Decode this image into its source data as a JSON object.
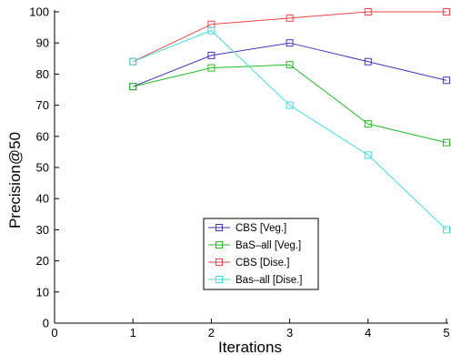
{
  "chart_data": {
    "type": "line",
    "title": "",
    "xlabel": "Iterations",
    "ylabel": "Precision@50",
    "xlim": [
      0,
      5
    ],
    "ylim": [
      0,
      100
    ],
    "xticks": [
      0,
      1,
      2,
      3,
      4,
      5
    ],
    "yticks": [
      0,
      10,
      20,
      30,
      40,
      50,
      60,
      70,
      80,
      90,
      100
    ],
    "grid": false,
    "legend_position": "lower-center",
    "x": [
      1,
      2,
      3,
      4,
      5
    ],
    "series": [
      {
        "name": "CBS [Veg.]",
        "color": "#4433bb",
        "marker": "square",
        "values": [
          76,
          86,
          90,
          84,
          78
        ]
      },
      {
        "name": "BaS–all [Veg.]",
        "color": "#22bb22",
        "marker": "square",
        "values": [
          76,
          82,
          83,
          64,
          58
        ]
      },
      {
        "name": "CBS [Dise.]",
        "color": "#ee4444",
        "marker": "square",
        "values": [
          84,
          96,
          98,
          100,
          100
        ]
      },
      {
        "name": "Bas–all [Dise.]",
        "color": "#44dddd",
        "marker": "square",
        "values": [
          84,
          94,
          70,
          54,
          30
        ]
      }
    ]
  }
}
